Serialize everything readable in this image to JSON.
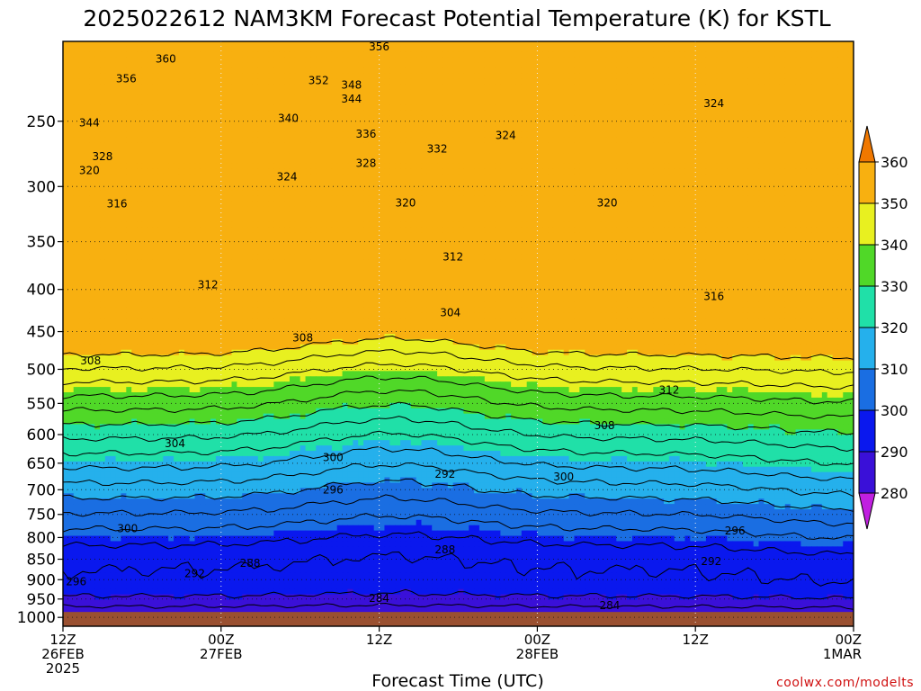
{
  "chart_data": {
    "type": "heatmap",
    "title": "2025022612 NAM3KM Forecast Potential Temperature (K) for KSTL",
    "xlabel": "Forecast Time (UTC)",
    "ylabel": "",
    "x_ticks": [
      {
        "hour": 0,
        "lines": [
          "12Z",
          "26FEB",
          "2025"
        ]
      },
      {
        "hour": 12,
        "lines": [
          "00Z",
          "27FEB"
        ]
      },
      {
        "hour": 24,
        "lines": [
          "12Z"
        ]
      },
      {
        "hour": 36,
        "lines": [
          "00Z",
          "28FEB"
        ]
      },
      {
        "hour": 48,
        "lines": [
          "12Z"
        ]
      },
      {
        "hour": 60,
        "lines": [
          "00Z",
          "1MAR"
        ]
      }
    ],
    "xlim_hours": [
      0,
      60
    ],
    "y_ticks": [
      250,
      300,
      350,
      400,
      450,
      500,
      550,
      600,
      650,
      700,
      750,
      800,
      850,
      900,
      950,
      1000
    ],
    "ylim_hpa": [
      200,
      1025
    ],
    "y_scale": "log",
    "grid": true,
    "colorbar": {
      "placement": "right",
      "levels": [
        280,
        290,
        300,
        310,
        320,
        330,
        340,
        350,
        360
      ],
      "colors": [
        "#c020e0",
        "#7010e0",
        "#3a10d8",
        "#0a18ee",
        "#1a6ee2",
        "#25b0ec",
        "#20e0a8",
        "#50d828",
        "#e8f020",
        "#f8b010",
        "#f07800"
      ]
    },
    "isentropes_k": [
      284,
      288,
      292,
      296,
      300,
      304,
      308,
      312,
      316,
      320,
      324,
      328,
      332,
      336,
      340,
      344,
      348,
      352,
      356,
      360
    ],
    "contour_labels": [
      {
        "value": "360",
        "hour": 7.8,
        "p": 210
      },
      {
        "value": "356",
        "hour": 4.8,
        "p": 222
      },
      {
        "value": "356",
        "hour": 24.0,
        "p": 203
      },
      {
        "value": "352",
        "hour": 19.4,
        "p": 223
      },
      {
        "value": "348",
        "hour": 21.9,
        "p": 226
      },
      {
        "value": "344",
        "hour": 21.9,
        "p": 235
      },
      {
        "value": "344",
        "hour": 2.0,
        "p": 251
      },
      {
        "value": "340",
        "hour": 17.1,
        "p": 248
      },
      {
        "value": "336",
        "hour": 23.0,
        "p": 259
      },
      {
        "value": "332",
        "hour": 28.4,
        "p": 270
      },
      {
        "value": "328",
        "hour": 3.0,
        "p": 276
      },
      {
        "value": "328",
        "hour": 23.0,
        "p": 281
      },
      {
        "value": "324",
        "hour": 33.6,
        "p": 260
      },
      {
        "value": "324",
        "hour": 49.4,
        "p": 238
      },
      {
        "value": "324",
        "hour": 17.0,
        "p": 292
      },
      {
        "value": "320",
        "hour": 2.0,
        "p": 287
      },
      {
        "value": "320",
        "hour": 26.0,
        "p": 314
      },
      {
        "value": "320",
        "hour": 41.3,
        "p": 314
      },
      {
        "value": "316",
        "hour": 4.1,
        "p": 315
      },
      {
        "value": "316",
        "hour": 49.4,
        "p": 408
      },
      {
        "value": "312",
        "hour": 11.0,
        "p": 395
      },
      {
        "value": "312",
        "hour": 29.6,
        "p": 365
      },
      {
        "value": "312",
        "hour": 46.0,
        "p": 530
      },
      {
        "value": "308",
        "hour": 2.1,
        "p": 488
      },
      {
        "value": "308",
        "hour": 18.2,
        "p": 458
      },
      {
        "value": "308",
        "hour": 41.1,
        "p": 585
      },
      {
        "value": "304",
        "hour": 8.5,
        "p": 615
      },
      {
        "value": "304",
        "hour": 29.4,
        "p": 427
      },
      {
        "value": "300",
        "hour": 4.9,
        "p": 780
      },
      {
        "value": "300",
        "hour": 20.5,
        "p": 640
      },
      {
        "value": "300",
        "hour": 38.0,
        "p": 675
      },
      {
        "value": "296",
        "hour": 1.0,
        "p": 905
      },
      {
        "value": "296",
        "hour": 20.5,
        "p": 700
      },
      {
        "value": "296",
        "hour": 51.0,
        "p": 785
      },
      {
        "value": "292",
        "hour": 10.0,
        "p": 885
      },
      {
        "value": "292",
        "hour": 29.0,
        "p": 670
      },
      {
        "value": "292",
        "hour": 49.2,
        "p": 855
      },
      {
        "value": "288",
        "hour": 14.2,
        "p": 860
      },
      {
        "value": "288",
        "hour": 29.0,
        "p": 828
      },
      {
        "value": "284",
        "hour": 24.0,
        "p": 948
      },
      {
        "value": "284",
        "hour": 41.5,
        "p": 967
      }
    ]
  },
  "credit": "coolwx.com/modelts"
}
